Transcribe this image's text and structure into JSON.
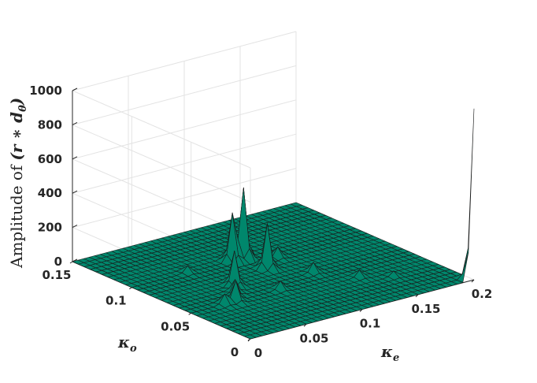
{
  "chart_data": {
    "type": "surface3d",
    "xlabel_main": "κ",
    "xlabel_sub": "e",
    "ylabel_main": "κ",
    "ylabel_sub": "o",
    "zlabel_prefix": "Amplitude of",
    "zlabel_math": "(r ∗ d",
    "zlabel_sub": "θ",
    "zlabel_suffix": ")",
    "xlim": [
      0,
      0.2
    ],
    "ylim": [
      0,
      0.15
    ],
    "zlim": [
      0,
      1000
    ],
    "x_ticks": [
      {
        "value": 0,
        "label": "0"
      },
      {
        "value": 0.05,
        "label": "0.05"
      },
      {
        "value": 0.1,
        "label": "0.1"
      },
      {
        "value": 0.15,
        "label": "0.15"
      },
      {
        "value": 0.2,
        "label": "0.2"
      }
    ],
    "y_ticks": [
      {
        "value": 0,
        "label": "0"
      },
      {
        "value": 0.05,
        "label": "0.05"
      },
      {
        "value": 0.1,
        "label": "0.1"
      },
      {
        "value": 0.15,
        "label": "0.15"
      }
    ],
    "z_ticks": [
      {
        "value": 0,
        "label": "0"
      },
      {
        "value": 200,
        "label": "200"
      },
      {
        "value": 400,
        "label": "400"
      },
      {
        "value": 600,
        "label": "600"
      },
      {
        "value": 800,
        "label": "800"
      },
      {
        "value": 1000,
        "label": "1000"
      }
    ],
    "grid": true,
    "surface_color": "#00876c",
    "edge_color": "#1a1a1a",
    "peaks": [
      {
        "ke": 0.2,
        "ko": 0.0,
        "amplitude": 1000
      },
      {
        "ke": 0.1,
        "ko": 0.1,
        "amplitude": 410
      },
      {
        "ke": 0.09,
        "ko": 0.1,
        "amplitude": 280
      },
      {
        "ke": 0.1,
        "ko": 0.08,
        "amplitude": 260
      },
      {
        "ke": 0.12,
        "ko": 0.09,
        "amplitude": 60
      },
      {
        "ke": 0.12,
        "ko": 0.06,
        "amplitude": 60
      },
      {
        "ke": 0.14,
        "ko": 0.04,
        "amplitude": 40
      },
      {
        "ke": 0.16,
        "ko": 0.03,
        "amplitude": 30
      },
      {
        "ke": 0.05,
        "ko": 0.1,
        "amplitude": 40
      },
      {
        "ke": 0.06,
        "ko": 0.07,
        "amplitude": 200
      },
      {
        "ke": 0.05,
        "ko": 0.06,
        "amplitude": 80
      },
      {
        "ke": 0.08,
        "ko": 0.05,
        "amplitude": 50
      },
      {
        "ke": 0.04,
        "ko": 0.05,
        "amplitude": 120
      },
      {
        "ke": 0.03,
        "ko": 0.05,
        "amplitude": 60
      }
    ]
  }
}
